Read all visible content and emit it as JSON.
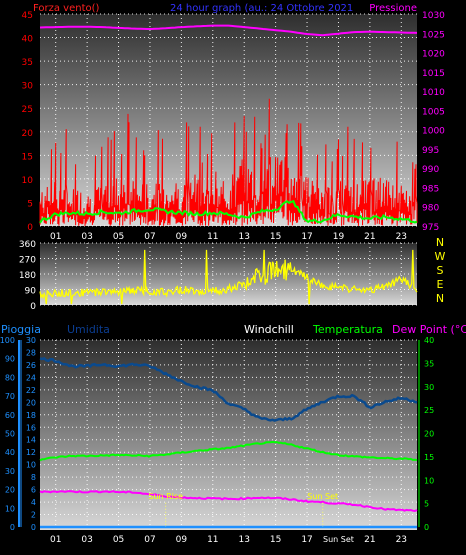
{
  "colors": {
    "background": "#000000",
    "panel_top": "#2e2e2e",
    "panel_bottom": "#d8d8d8",
    "grid": "#ffffff",
    "axis_text": "#ffffff",
    "wind": "#ff0000",
    "wind_label": "#ff2020",
    "gust_avg": "#00ff00",
    "pressure": "#ff00ff",
    "direction": "#ffff00",
    "rain": "#1e90ff",
    "humidity": "#0b3d91",
    "humidity_line": "#0a4a8e",
    "windchill": "#ffffff",
    "temperature": "#00ff00",
    "dewpoint": "#ff00ff",
    "title": "#3333ff",
    "sun_line": "#ffff66",
    "sun_text": "#ffff00"
  },
  "chart_data": [
    {
      "type": "line",
      "title": "24 hour graph (au.: 24 Ottobre 2021",
      "ylabel": "Forza vento()",
      "ylabel_right": "Pressione",
      "ylim": [
        0,
        45
      ],
      "ylim_right": [
        975,
        1030
      ],
      "yticks": [
        0,
        5,
        10,
        15,
        20,
        25,
        30,
        35,
        40,
        45
      ],
      "yticks_right": [
        975,
        980,
        985,
        990,
        995,
        1000,
        1005,
        1010,
        1015,
        1020,
        1025,
        1030
      ],
      "xticks": [
        "01",
        "03",
        "05",
        "07",
        "09",
        "11",
        "13",
        "15",
        "17",
        "19",
        "21",
        "23"
      ],
      "grid": true,
      "series": [
        {
          "name": "Pressione",
          "axis": "right",
          "values": [
            1026.5,
            1026.6,
            1026.7,
            1026.7,
            1026.6,
            1026.4,
            1026.2,
            1026.1,
            1026.3,
            1026.6,
            1026.8,
            1027.0,
            1027.0,
            1026.6,
            1026.2,
            1025.8,
            1025.4,
            1024.8,
            1024.5,
            1024.9,
            1025.3,
            1025.4,
            1025.3,
            1025.2,
            1025.1
          ]
        },
        {
          "values": [
            6,
            8,
            7,
            6,
            7,
            9,
            8,
            7,
            8,
            8,
            9,
            7,
            8,
            12,
            9,
            14,
            11,
            9,
            6,
            8,
            7,
            9,
            8,
            7,
            5
          ]
        },
        {
          "values": [
            1.0,
            2.5,
            2.8,
            2.6,
            3.0,
            2.7,
            3.2,
            3.6,
            3.1,
            2.8,
            2.6,
            2.8,
            2.5,
            1.8,
            3.0,
            3.6,
            5.5,
            1.0,
            1.2,
            2.4,
            2.0,
            1.6,
            1.9,
            1.5,
            1.0
          ]
        }
      ]
    },
    {
      "type": "line",
      "ylim": [
        0,
        360
      ],
      "yticks": [
        0,
        90,
        180,
        270,
        360
      ],
      "direction_labels": [
        "N",
        "W",
        "S",
        "E",
        "N"
      ],
      "grid": true,
      "series": [
        {
          "values": [
            60,
            65,
            75,
            70,
            80,
            78,
            85,
            80,
            75,
            90,
            85,
            80,
            95,
            120,
            160,
            210,
            200,
            160,
            110,
            100,
            90,
            80,
            110,
            150,
            90
          ]
        }
      ]
    },
    {
      "type": "line",
      "legend": [
        "Pioggia",
        "Umidita",
        "Windchill",
        "Temperatura",
        "Dew Point (°C)"
      ],
      "ylim_rain": [
        0,
        100
      ],
      "ylim_humidity": [
        0,
        30
      ],
      "ylim_temp": [
        0,
        40
      ],
      "yticks_rain": [
        0,
        10,
        20,
        30,
        40,
        50,
        60,
        70,
        80,
        90,
        100
      ],
      "yticks_humidity": [
        0,
        2,
        4,
        6,
        8,
        10,
        12,
        14,
        16,
        18,
        20,
        22,
        24,
        26,
        28,
        30
      ],
      "yticks_temp": [
        0,
        5,
        10,
        15,
        20,
        25,
        30,
        35,
        40
      ],
      "xticks": [
        "01",
        "03",
        "05",
        "07",
        "09",
        "11",
        "13",
        "15",
        "17",
        "Sun Set",
        "21",
        "23"
      ],
      "grid": true,
      "annotations": [
        {
          "text": "Sun Rise",
          "hour": 8.0
        },
        {
          "text": "Sun Set",
          "hour": 18.0
        }
      ],
      "series": [
        {
          "name": "Temperatura",
          "values": [
            14.4,
            14.9,
            15.2,
            15.2,
            15.3,
            15.4,
            15.3,
            15.2,
            15.5,
            15.9,
            16.3,
            16.6,
            16.9,
            17.4,
            17.9,
            18.1,
            17.6,
            16.8,
            16.0,
            15.4,
            15.1,
            14.9,
            14.7,
            14.6,
            14.4
          ]
        },
        {
          "name": "Dew Point (°C)",
          "values": [
            7.5,
            7.6,
            7.6,
            7.5,
            7.6,
            7.5,
            7.4,
            7.0,
            6.6,
            6.3,
            6.2,
            6.1,
            6.0,
            6.1,
            6.3,
            6.2,
            5.9,
            5.5,
            5.3,
            5.0,
            4.8,
            4.3,
            3.8,
            3.6,
            3.5
          ]
        },
        {
          "name": "Umidita",
          "values": [
            90,
            89,
            86,
            86,
            87,
            86,
            87,
            86,
            82,
            78,
            75,
            73,
            66,
            63,
            58,
            57,
            58,
            63,
            67,
            70,
            70,
            64,
            67,
            69,
            67
          ]
        },
        {
          "name": "Pioggia",
          "values": [
            0,
            0,
            0,
            0,
            0,
            0,
            0,
            0,
            0,
            0,
            0,
            0,
            0,
            0,
            0,
            0,
            0,
            0,
            0,
            0,
            0,
            0,
            0,
            0,
            0
          ]
        }
      ]
    }
  ]
}
